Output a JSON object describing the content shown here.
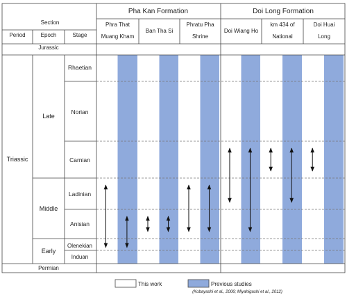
{
  "header": {
    "section_label": "Section",
    "period_label": "Period",
    "epoch_label": "Epoch",
    "stage_label": "Stage",
    "formations": [
      {
        "name": "Pha Kan Formation"
      },
      {
        "name": "Doi Long Formation"
      }
    ],
    "sections": [
      {
        "lines": [
          "Phra That",
          "Muang Kham"
        ]
      },
      {
        "lines": [
          "Ban Tha Si"
        ]
      },
      {
        "lines": [
          "Phratu Pha",
          "Shrine"
        ]
      },
      {
        "lines": [
          "Doi Wiang Ho"
        ]
      },
      {
        "lines": [
          "km 434 of",
          "National"
        ]
      },
      {
        "lines": [
          "Doi Huai",
          "Long"
        ]
      }
    ]
  },
  "timescale": {
    "top_period": "Jurassic",
    "bottom_period": "Permian",
    "period": "Triassic",
    "epochs": [
      {
        "name": "Late",
        "stages": [
          "Rhaetian",
          "Norian",
          "Carnian"
        ]
      },
      {
        "name": "Middle",
        "stages": [
          "Ladinian",
          "Anisian"
        ]
      },
      {
        "name": "Early",
        "stages": [
          "Olenekian",
          "Induan"
        ]
      }
    ]
  },
  "ranges": [
    {
      "section": 0,
      "column": "this_work",
      "from": "Ladinian",
      "to": "Olenekian"
    },
    {
      "section": 0,
      "column": "previous",
      "from": "Anisian",
      "to": "Olenekian"
    },
    {
      "section": 1,
      "column": "this_work",
      "from": "Anisian",
      "to": "Anisian"
    },
    {
      "section": 1,
      "column": "previous",
      "from": "Anisian",
      "to": "Anisian"
    },
    {
      "section": 2,
      "column": "this_work",
      "from": "Ladinian",
      "to": "Anisian"
    },
    {
      "section": 2,
      "column": "previous",
      "from": "Ladinian",
      "to": "Anisian"
    },
    {
      "section": 3,
      "column": "this_work",
      "from": "Carnian",
      "to": "Ladinian"
    },
    {
      "section": 3,
      "column": "previous",
      "from": "Carnian",
      "to": "Anisian"
    },
    {
      "section": 4,
      "column": "this_work",
      "from": "Carnian",
      "to": "Carnian"
    },
    {
      "section": 4,
      "column": "previous",
      "from": "Carnian",
      "to": "Ladinian"
    },
    {
      "section": 5,
      "column": "this_work",
      "from": "Carnian",
      "to": "Carnian"
    }
  ],
  "legend": {
    "this_work_label": "This work",
    "previous_label": "Previous studies",
    "citation": "(Kobayashi et al., 2006; Miyahigashi et al., 2012)"
  },
  "colors": {
    "previous_fill": "#8faadc",
    "grid": "#444444",
    "dashed": "#777777"
  }
}
